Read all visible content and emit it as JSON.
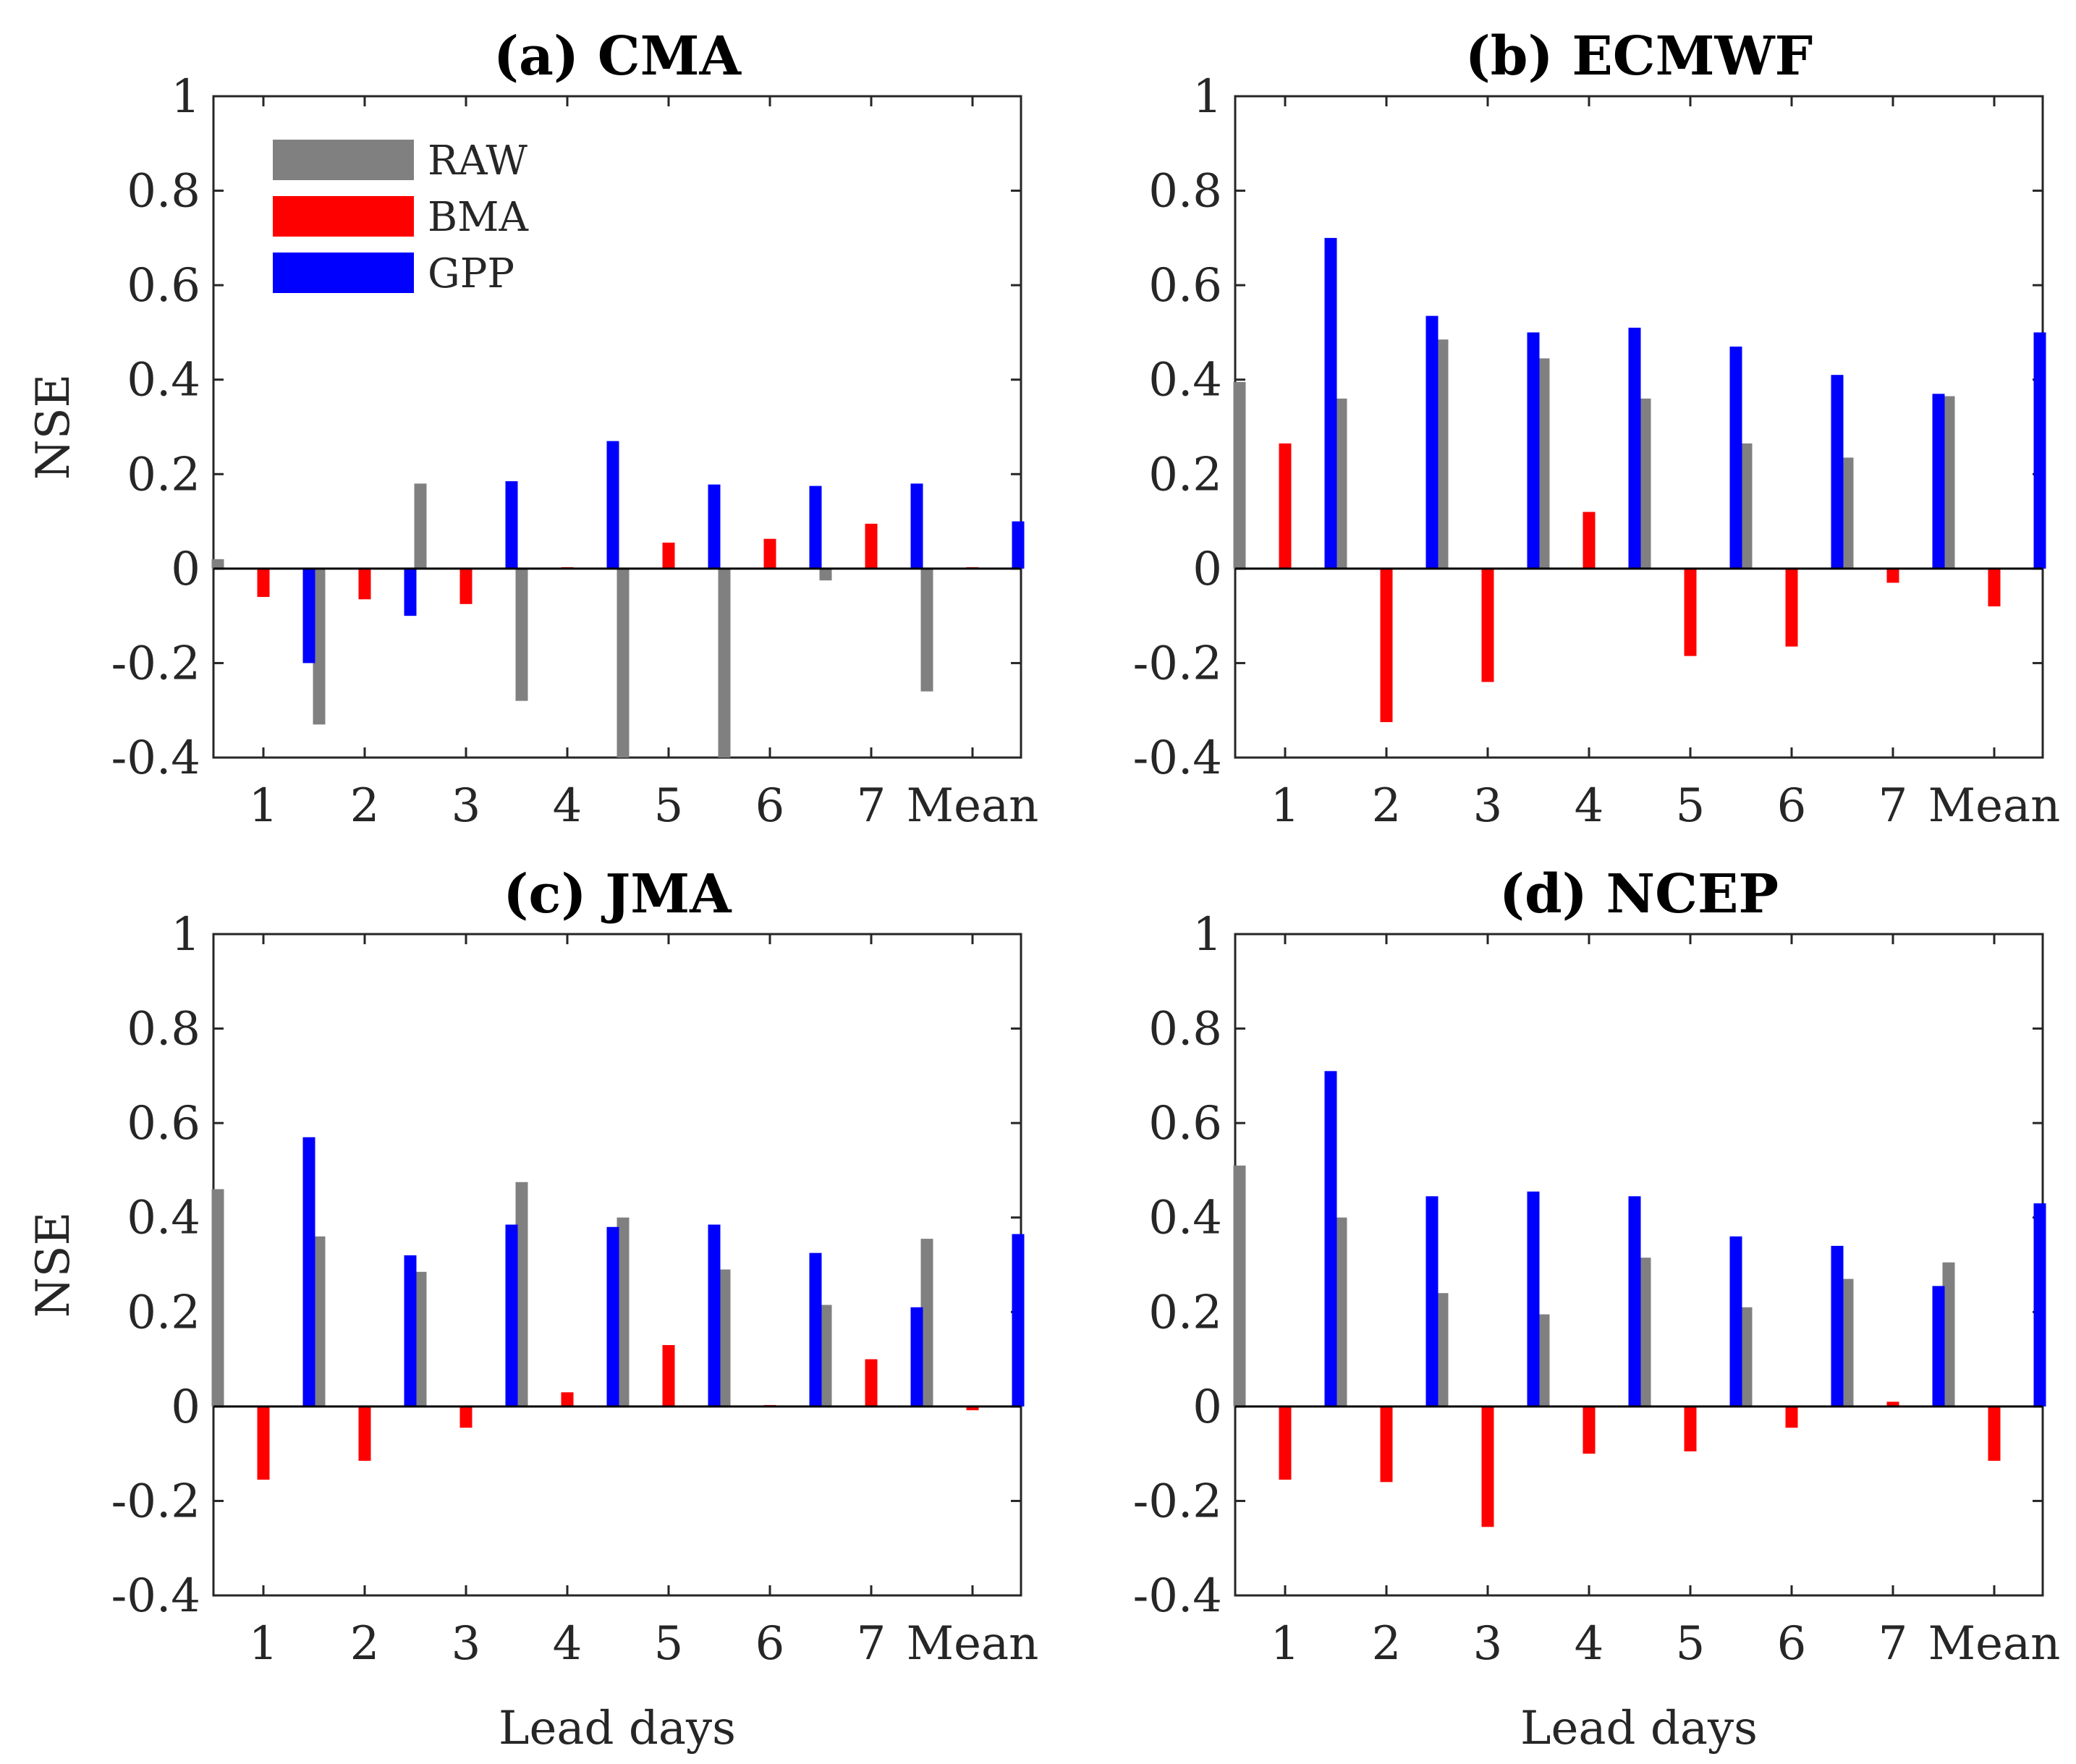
{
  "chart_data": [
    {
      "type": "bar",
      "title": "(a) CMA",
      "xlabel": "",
      "ylabel": "NSE",
      "categories": [
        "1",
        "2",
        "3",
        "4",
        "5",
        "6",
        "7",
        "Mean"
      ],
      "ylim": [
        -0.4,
        1
      ],
      "yticks": [
        "-0.4",
        "-0.2",
        "0",
        "0.2",
        "0.4",
        "0.6",
        "0.8",
        "1"
      ],
      "series": [
        {
          "name": "RAW",
          "values": [
            0.02,
            -0.33,
            0.18,
            -0.28,
            -0.4,
            -0.4,
            -0.025,
            -0.26
          ]
        },
        {
          "name": "BMA",
          "values": [
            -0.06,
            -0.065,
            -0.075,
            0.003,
            0.055,
            0.063,
            0.095,
            0.003
          ]
        },
        {
          "name": "GPP",
          "values": [
            -0.2,
            -0.1,
            0.185,
            0.27,
            0.178,
            0.175,
            0.18,
            0.1
          ]
        }
      ],
      "legend": {
        "show": true,
        "position": "top-left"
      }
    },
    {
      "type": "bar",
      "title": "(b) ECMWF",
      "xlabel": "",
      "ylabel": "",
      "categories": [
        "1",
        "2",
        "3",
        "4",
        "5",
        "6",
        "7",
        "Mean"
      ],
      "ylim": [
        -0.4,
        1
      ],
      "yticks": [
        "-0.4",
        "-0.2",
        "0",
        "0.2",
        "0.4",
        "0.6",
        "0.8",
        "1"
      ],
      "series": [
        {
          "name": "RAW",
          "values": [
            0.395,
            0.36,
            0.485,
            0.445,
            0.36,
            0.265,
            0.235,
            0.365
          ]
        },
        {
          "name": "BMA",
          "values": [
            0.265,
            -0.325,
            -0.24,
            0.12,
            -0.185,
            -0.165,
            -0.03,
            -0.08
          ]
        },
        {
          "name": "GPP",
          "values": [
            0.7,
            0.535,
            0.5,
            0.51,
            0.47,
            0.41,
            0.37,
            0.5
          ]
        }
      ],
      "legend": {
        "show": false
      }
    },
    {
      "type": "bar",
      "title": "(c) JMA",
      "xlabel": "Lead days",
      "ylabel": "NSE",
      "categories": [
        "1",
        "2",
        "3",
        "4",
        "5",
        "6",
        "7",
        "Mean"
      ],
      "ylim": [
        -0.4,
        1
      ],
      "yticks": [
        "-0.4",
        "-0.2",
        "0",
        "0.2",
        "0.4",
        "0.6",
        "0.8",
        "1"
      ],
      "series": [
        {
          "name": "RAW",
          "values": [
            0.46,
            0.36,
            0.285,
            0.475,
            0.4,
            0.29,
            0.215,
            0.355
          ]
        },
        {
          "name": "BMA",
          "values": [
            -0.155,
            -0.115,
            -0.045,
            0.03,
            0.13,
            0.003,
            0.1,
            -0.008
          ]
        },
        {
          "name": "GPP",
          "values": [
            0.57,
            0.32,
            0.385,
            0.38,
            0.385,
            0.325,
            0.21,
            0.365
          ]
        }
      ],
      "legend": {
        "show": false
      }
    },
    {
      "type": "bar",
      "title": "(d) NCEP",
      "xlabel": "Lead days",
      "ylabel": "",
      "categories": [
        "1",
        "2",
        "3",
        "4",
        "5",
        "6",
        "7",
        "Mean"
      ],
      "ylim": [
        -0.4,
        1
      ],
      "yticks": [
        "-0.4",
        "-0.2",
        "0",
        "0.2",
        "0.4",
        "0.6",
        "0.8",
        "1"
      ],
      "series": [
        {
          "name": "RAW",
          "values": [
            0.51,
            0.4,
            0.24,
            0.195,
            0.315,
            0.21,
            0.27,
            0.305
          ]
        },
        {
          "name": "BMA",
          "values": [
            -0.155,
            -0.16,
            -0.255,
            -0.1,
            -0.095,
            -0.045,
            0.01,
            -0.115
          ]
        },
        {
          "name": "GPP",
          "values": [
            0.71,
            0.445,
            0.455,
            0.445,
            0.36,
            0.34,
            0.255,
            0.43
          ]
        }
      ],
      "legend": {
        "show": false
      }
    }
  ],
  "colors": {
    "RAW": "#808080",
    "BMA": "#ff0000",
    "GPP": "#0000ff"
  }
}
